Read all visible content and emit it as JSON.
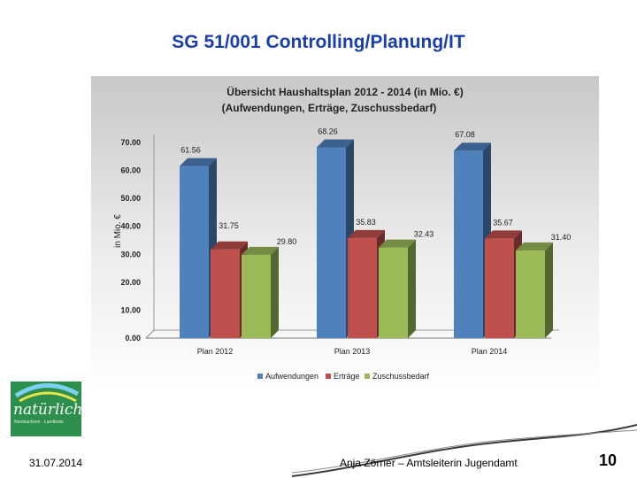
{
  "slide": {
    "title": "SG 51/001 Controlling/Planung/IT",
    "date": "31.07.2014",
    "author": "Anja Zörner – Amtsleiterin Jugendamt",
    "page": "10",
    "logo_text": "natürlich!",
    "logo_subtext": "Nordsachsen · Landkreis"
  },
  "chart_data": {
    "type": "bar",
    "title_line1": "Übersicht Haushaltsplan 2012 - 2014 (in Mio. €)",
    "title_line2": "(Aufwendungen, Erträge, Zuschussbedarf)",
    "categories": [
      "Plan 2012",
      "Plan 2013",
      "Plan 2014"
    ],
    "series": [
      {
        "name": "Aufwendungen",
        "color": "#4f81bd",
        "values": [
          61.56,
          68.26,
          67.08
        ]
      },
      {
        "name": "Erträge",
        "color": "#c0504d",
        "values": [
          31.75,
          35.83,
          35.67
        ]
      },
      {
        "name": "Zuschussbedarf",
        "color": "#9bbb59",
        "values": [
          29.8,
          32.43,
          31.4
        ]
      }
    ],
    "value_labels": [
      [
        "61.56",
        "68.26",
        "67.08"
      ],
      [
        "31.75",
        "35.83",
        "35.67"
      ],
      [
        "29.80",
        "32.43",
        "31.40"
      ]
    ],
    "ylabel": "in Mio. €",
    "ylim": [
      0,
      70
    ],
    "yticks": [
      "0.00",
      "10.00",
      "20.00",
      "30.00",
      "40.00",
      "50.00",
      "60.00",
      "70.00"
    ],
    "legend_position": "bottom"
  }
}
